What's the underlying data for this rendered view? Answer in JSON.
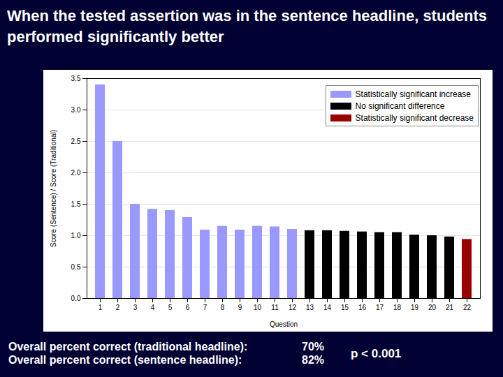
{
  "chart_data": {
    "type": "bar",
    "title": "When the tested assertion was in the sentence headline, students performed significantly better",
    "x_label": "Question",
    "y_label": "Score (Sentence) / Score (Traditional)",
    "categories": [
      "1",
      "2",
      "3",
      "4",
      "5",
      "6",
      "7",
      "8",
      "9",
      "10",
      "11",
      "12",
      "13",
      "14",
      "15",
      "16",
      "17",
      "18",
      "19",
      "20",
      "21",
      "22"
    ],
    "series": [
      {
        "name": "Statistically significant increase",
        "color": "#9999ff",
        "values": [
          3.4,
          2.5,
          1.5,
          1.42,
          1.4,
          1.29,
          1.09,
          1.15,
          1.09,
          1.15,
          1.14,
          1.1,
          null,
          null,
          null,
          null,
          null,
          null,
          null,
          null,
          null,
          null
        ]
      },
      {
        "name": "No significant difference",
        "color": "#000000",
        "values": [
          null,
          null,
          null,
          null,
          null,
          null,
          null,
          null,
          null,
          null,
          null,
          null,
          1.08,
          1.08,
          1.07,
          1.06,
          1.05,
          1.05,
          1.01,
          1.0,
          0.98,
          null
        ]
      },
      {
        "name": "Statistically significant decrease",
        "color": "#990000",
        "values": [
          null,
          null,
          null,
          null,
          null,
          null,
          null,
          null,
          null,
          null,
          null,
          null,
          null,
          null,
          null,
          null,
          null,
          null,
          null,
          null,
          null,
          0.94
        ]
      }
    ],
    "ylim": [
      0,
      3.5
    ],
    "yticks": [
      {
        "value": 0,
        "label": "0.0"
      },
      {
        "value": 0.5,
        "label": "0.5"
      },
      {
        "value": 1,
        "label": "1.0"
      },
      {
        "value": 1.5,
        "label": "1.5"
      },
      {
        "value": 2,
        "label": "2.0"
      },
      {
        "value": 2.5,
        "label": "2.5"
      },
      {
        "value": 3,
        "label": "3.0"
      },
      {
        "value": 3.5,
        "label": "3.5"
      }
    ],
    "grid": true,
    "legend": "top-right",
    "annotations": [
      [
        "Overall percent correct (traditional headline):",
        "70%"
      ],
      [
        "Overall percent correct (sentence headline):",
        "82%"
      ],
      [
        "p < 0.001"
      ]
    ]
  }
}
